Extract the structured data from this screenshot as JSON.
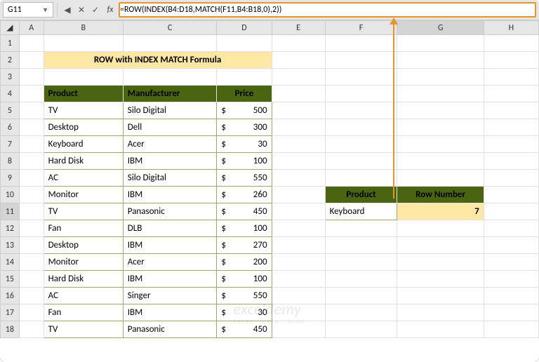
{
  "nameBox": {
    "cellRef": "G11"
  },
  "formulaBar": {
    "value": "=ROW(INDEX(B4:D18,MATCH(F11,B4:B18,0),2))"
  },
  "columns": [
    "A",
    "B",
    "C",
    "D",
    "E",
    "F",
    "G",
    "H"
  ],
  "rowCount": 18,
  "title": "ROW with INDEX MATCH Formula",
  "tableHeaders": {
    "product": "Product",
    "manufacturer": "Manufacturer",
    "price": "Price"
  },
  "tableRows": [
    {
      "product": "TV",
      "manufacturer": "Silo Digital",
      "price": "500"
    },
    {
      "product": "Desktop",
      "manufacturer": "Dell",
      "price": "300"
    },
    {
      "product": "Keyboard",
      "manufacturer": "Acer",
      "price": "30"
    },
    {
      "product": "Hard Disk",
      "manufacturer": "IBM",
      "price": "100"
    },
    {
      "product": "AC",
      "manufacturer": "Silo Digital",
      "price": "550"
    },
    {
      "product": "Monitor",
      "manufacturer": "IBM",
      "price": "260"
    },
    {
      "product": "TV",
      "manufacturer": "Panasonic",
      "price": "450"
    },
    {
      "product": "Fan",
      "manufacturer": "DLB",
      "price": "100"
    },
    {
      "product": "Desktop",
      "manufacturer": "IBM",
      "price": "270"
    },
    {
      "product": "Monitor",
      "manufacturer": "Acer",
      "price": "200"
    },
    {
      "product": "Hard Disk",
      "manufacturer": "IBM",
      "price": "100"
    },
    {
      "product": "AC",
      "manufacturer": "Singer",
      "price": "550"
    },
    {
      "product": "Fan",
      "manufacturer": "IBM",
      "price": "30"
    },
    {
      "product": "TV",
      "manufacturer": "Panasonic",
      "price": "450"
    }
  ],
  "currencySymbol": "$",
  "lookup": {
    "headerProduct": "Product",
    "headerRow": "Row Number",
    "product": "Keyboard",
    "rowNumber": "7"
  },
  "colors": {
    "headerBg": "#4a6412",
    "headerFg": "#ffffff",
    "titleBg": "#fce7a5",
    "highlightBorder": "#e8922a",
    "selectBorder": "#2e7d32"
  },
  "watermark": {
    "main": "exceldemy",
    "sub": "EXCEL · DATA · BLOG"
  }
}
